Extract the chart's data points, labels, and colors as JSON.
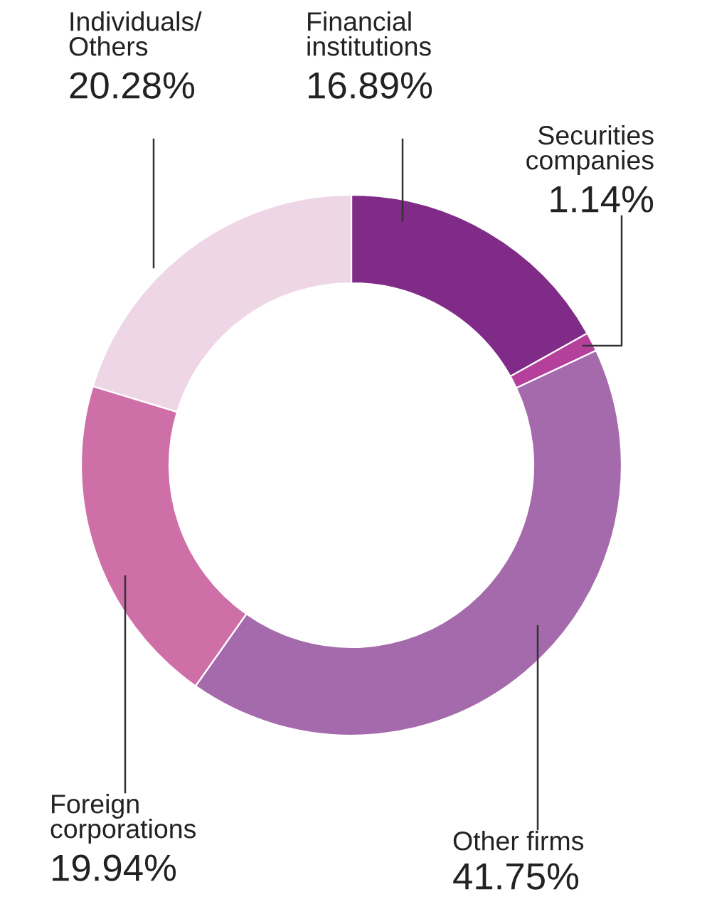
{
  "chart_data": {
    "type": "donut",
    "categories": [
      "Financial\ninstitutions",
      "Securities\ncompanies",
      "Other firms",
      "Foreign\ncorporations",
      "Individuals/\nOthers"
    ],
    "values": [
      16.89,
      1.14,
      41.75,
      19.94,
      20.28
    ],
    "colors": [
      "#7f2b87",
      "#b5409c",
      "#a56aab",
      "#cf6fa8",
      "#efd6e6"
    ],
    "value_labels": [
      "16.89%",
      "1.14%",
      "41.75%",
      "19.94%",
      "20.28%"
    ]
  }
}
